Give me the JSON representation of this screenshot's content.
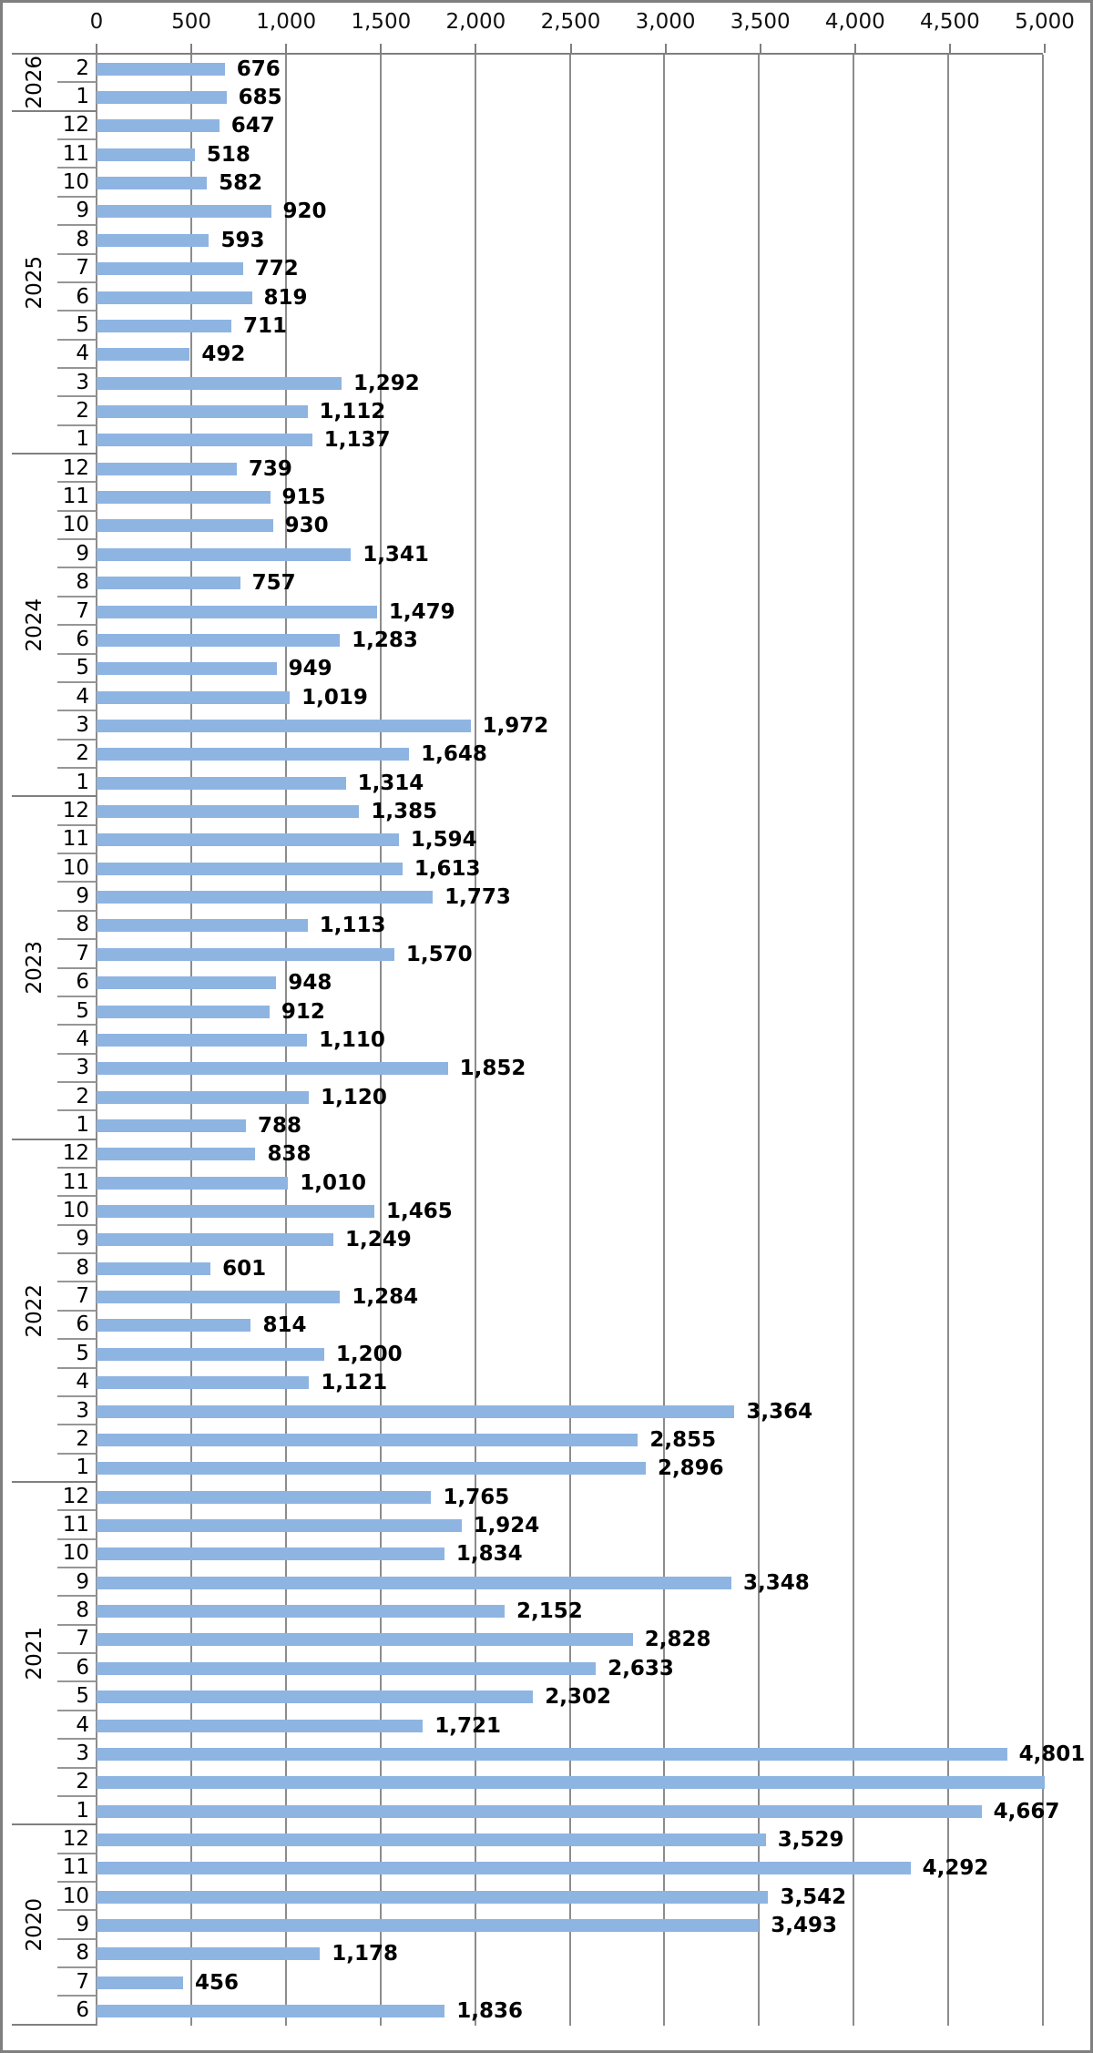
{
  "colors": {
    "bar": "#8EB4E2",
    "gridline": "#8C8C8C",
    "axis_line": "#7F7F7F",
    "month_separator": "#969696",
    "chart_border": "#7F7F7F",
    "label_text": "#000000"
  },
  "chart_data": {
    "type": "bar",
    "orientation": "horizontal",
    "value_axis_position": "top",
    "xlim": [
      0,
      5000
    ],
    "x_tick_step": 500,
    "x_tick_labels": [
      "0",
      "500",
      "1,000",
      "1,500",
      "2,000",
      "2,500",
      "3,000",
      "3,500",
      "4,000",
      "4,500",
      "5,000"
    ],
    "gridlines": true,
    "groups": [
      {
        "year": "2026",
        "rows": [
          {
            "month": "2",
            "value": 676,
            "label": "676"
          },
          {
            "month": "1",
            "value": 685,
            "label": "685"
          }
        ]
      },
      {
        "year": "2025",
        "rows": [
          {
            "month": "12",
            "value": 647,
            "label": "647"
          },
          {
            "month": "11",
            "value": 518,
            "label": "518"
          },
          {
            "month": "10",
            "value": 582,
            "label": "582"
          },
          {
            "month": "9",
            "value": 920,
            "label": "920"
          },
          {
            "month": "8",
            "value": 593,
            "label": "593"
          },
          {
            "month": "7",
            "value": 772,
            "label": "772"
          },
          {
            "month": "6",
            "value": 819,
            "label": "819"
          },
          {
            "month": "5",
            "value": 711,
            "label": "711"
          },
          {
            "month": "4",
            "value": 492,
            "label": "492"
          },
          {
            "month": "3",
            "value": 1292,
            "label": "1,292"
          },
          {
            "month": "2",
            "value": 1112,
            "label": "1,112"
          },
          {
            "month": "1",
            "value": 1137,
            "label": "1,137"
          }
        ]
      },
      {
        "year": "2024",
        "rows": [
          {
            "month": "12",
            "value": 739,
            "label": "739"
          },
          {
            "month": "11",
            "value": 915,
            "label": "915"
          },
          {
            "month": "10",
            "value": 930,
            "label": "930"
          },
          {
            "month": "9",
            "value": 1341,
            "label": "1,341"
          },
          {
            "month": "8",
            "value": 757,
            "label": "757"
          },
          {
            "month": "7",
            "value": 1479,
            "label": "1,479"
          },
          {
            "month": "6",
            "value": 1283,
            "label": "1,283"
          },
          {
            "month": "5",
            "value": 949,
            "label": "949"
          },
          {
            "month": "4",
            "value": 1019,
            "label": "1,019"
          },
          {
            "month": "3",
            "value": 1972,
            "label": "1,972"
          },
          {
            "month": "2",
            "value": 1648,
            "label": "1,648"
          },
          {
            "month": "1",
            "value": 1314,
            "label": "1,314"
          }
        ]
      },
      {
        "year": "2023",
        "rows": [
          {
            "month": "12",
            "value": 1385,
            "label": "1,385"
          },
          {
            "month": "11",
            "value": 1594,
            "label": "1,594"
          },
          {
            "month": "10",
            "value": 1613,
            "label": "1,613"
          },
          {
            "month": "9",
            "value": 1773,
            "label": "1,773"
          },
          {
            "month": "8",
            "value": 1113,
            "label": "1,113"
          },
          {
            "month": "7",
            "value": 1570,
            "label": "1,570"
          },
          {
            "month": "6",
            "value": 948,
            "label": "948"
          },
          {
            "month": "5",
            "value": 912,
            "label": "912"
          },
          {
            "month": "4",
            "value": 1110,
            "label": "1,110"
          },
          {
            "month": "3",
            "value": 1852,
            "label": "1,852"
          },
          {
            "month": "2",
            "value": 1120,
            "label": "1,120"
          },
          {
            "month": "1",
            "value": 788,
            "label": "788"
          }
        ]
      },
      {
        "year": "2022",
        "rows": [
          {
            "month": "12",
            "value": 838,
            "label": "838"
          },
          {
            "month": "11",
            "value": 1010,
            "label": "1,010"
          },
          {
            "month": "10",
            "value": 1465,
            "label": "1,465"
          },
          {
            "month": "9",
            "value": 1249,
            "label": "1,249"
          },
          {
            "month": "8",
            "value": 601,
            "label": "601"
          },
          {
            "month": "7",
            "value": 1284,
            "label": "1,284"
          },
          {
            "month": "6",
            "value": 814,
            "label": "814"
          },
          {
            "month": "5",
            "value": 1200,
            "label": "1,200"
          },
          {
            "month": "4",
            "value": 1121,
            "label": "1,121"
          },
          {
            "month": "3",
            "value": 3364,
            "label": "3,364"
          },
          {
            "month": "2",
            "value": 2855,
            "label": "2,855"
          },
          {
            "month": "1",
            "value": 2896,
            "label": "2,896"
          }
        ]
      },
      {
        "year": "2021",
        "rows": [
          {
            "month": "12",
            "value": 1765,
            "label": "1,765"
          },
          {
            "month": "11",
            "value": 1924,
            "label": "1,924"
          },
          {
            "month": "10",
            "value": 1834,
            "label": "1,834"
          },
          {
            "month": "9",
            "value": 3348,
            "label": "3,348"
          },
          {
            "month": "8",
            "value": 2152,
            "label": "2,152"
          },
          {
            "month": "7",
            "value": 2828,
            "label": "2,828"
          },
          {
            "month": "6",
            "value": 2633,
            "label": "2,633"
          },
          {
            "month": "5",
            "value": 2302,
            "label": "2,302"
          },
          {
            "month": "4",
            "value": 1721,
            "label": "1,721"
          },
          {
            "month": "3",
            "value": 4801,
            "label": "4,801"
          },
          {
            "month": "2",
            "value": 5000,
            "label": ""
          },
          {
            "month": "1",
            "value": 4667,
            "label": "4,667"
          }
        ]
      },
      {
        "year": "2020",
        "rows": [
          {
            "month": "12",
            "value": 3529,
            "label": "3,529"
          },
          {
            "month": "11",
            "value": 4292,
            "label": "4,292"
          },
          {
            "month": "10",
            "value": 3542,
            "label": "3,542"
          },
          {
            "month": "9",
            "value": 3493,
            "label": "3,493"
          },
          {
            "month": "8",
            "value": 1178,
            "label": "1,178"
          },
          {
            "month": "7",
            "value": 456,
            "label": "456"
          },
          {
            "month": "6",
            "value": 1836,
            "label": "1,836"
          }
        ]
      }
    ]
  }
}
